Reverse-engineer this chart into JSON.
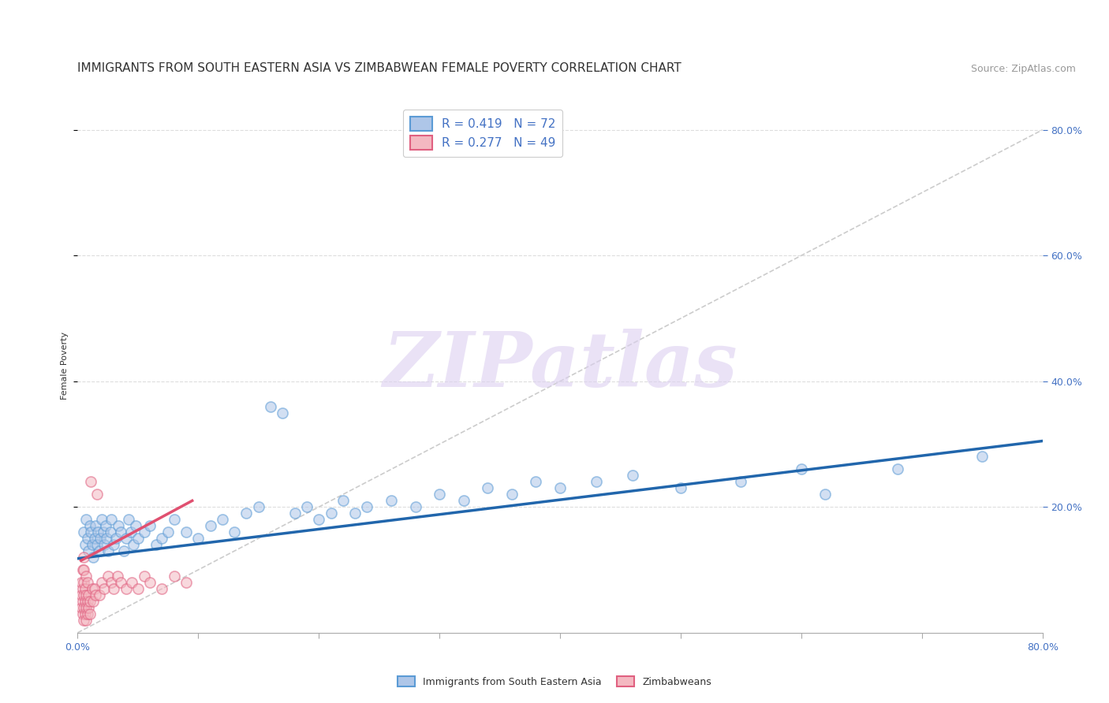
{
  "title": "IMMIGRANTS FROM SOUTH EASTERN ASIA VS ZIMBABWEAN FEMALE POVERTY CORRELATION CHART",
  "source": "Source: ZipAtlas.com",
  "ylabel": "Female Poverty",
  "legend1_R": "0.419",
  "legend1_N": "72",
  "legend2_R": "0.277",
  "legend2_N": "49",
  "blue_fill": "#aec6e8",
  "blue_edge": "#5b9bd5",
  "pink_fill": "#f4b8c1",
  "pink_edge": "#e06080",
  "gray_dash_color": "#cccccc",
  "blue_line_color": "#2166ac",
  "pink_line_color": "#e05070",
  "text_color": "#333333",
  "blue_label_color": "#4472c4",
  "right_axis_color": "#4472c4",
  "grid_color": "#dddddd",
  "background_color": "#ffffff",
  "blue_scatter_x": [
    0.005,
    0.006,
    0.007,
    0.008,
    0.009,
    0.01,
    0.011,
    0.012,
    0.013,
    0.014,
    0.015,
    0.016,
    0.017,
    0.018,
    0.019,
    0.02,
    0.021,
    0.022,
    0.023,
    0.024,
    0.025,
    0.027,
    0.028,
    0.03,
    0.032,
    0.034,
    0.036,
    0.038,
    0.04,
    0.042,
    0.044,
    0.046,
    0.048,
    0.05,
    0.055,
    0.06,
    0.065,
    0.07,
    0.075,
    0.08,
    0.09,
    0.1,
    0.11,
    0.12,
    0.13,
    0.14,
    0.15,
    0.16,
    0.17,
    0.18,
    0.19,
    0.2,
    0.21,
    0.22,
    0.23,
    0.24,
    0.26,
    0.28,
    0.3,
    0.32,
    0.34,
    0.36,
    0.38,
    0.4,
    0.43,
    0.46,
    0.5,
    0.55,
    0.6,
    0.62,
    0.68,
    0.75
  ],
  "blue_scatter_y": [
    0.16,
    0.14,
    0.18,
    0.15,
    0.13,
    0.17,
    0.16,
    0.14,
    0.12,
    0.15,
    0.17,
    0.14,
    0.16,
    0.13,
    0.15,
    0.18,
    0.16,
    0.14,
    0.17,
    0.15,
    0.13,
    0.16,
    0.18,
    0.14,
    0.15,
    0.17,
    0.16,
    0.13,
    0.15,
    0.18,
    0.16,
    0.14,
    0.17,
    0.15,
    0.16,
    0.17,
    0.14,
    0.15,
    0.16,
    0.18,
    0.16,
    0.15,
    0.17,
    0.18,
    0.16,
    0.19,
    0.2,
    0.36,
    0.35,
    0.19,
    0.2,
    0.18,
    0.19,
    0.21,
    0.19,
    0.2,
    0.21,
    0.2,
    0.22,
    0.21,
    0.23,
    0.22,
    0.24,
    0.23,
    0.24,
    0.25,
    0.23,
    0.24,
    0.26,
    0.22,
    0.26,
    0.28
  ],
  "pink_scatter_x": [
    0.003,
    0.003,
    0.003,
    0.004,
    0.004,
    0.004,
    0.004,
    0.005,
    0.005,
    0.005,
    0.005,
    0.005,
    0.005,
    0.006,
    0.006,
    0.006,
    0.007,
    0.007,
    0.007,
    0.007,
    0.008,
    0.008,
    0.008,
    0.009,
    0.009,
    0.01,
    0.01,
    0.011,
    0.012,
    0.013,
    0.014,
    0.015,
    0.016,
    0.018,
    0.02,
    0.022,
    0.025,
    0.028,
    0.03,
    0.033,
    0.036,
    0.04,
    0.045,
    0.05,
    0.055,
    0.06,
    0.07,
    0.08,
    0.09
  ],
  "pink_scatter_y": [
    0.04,
    0.06,
    0.08,
    0.03,
    0.05,
    0.07,
    0.1,
    0.02,
    0.04,
    0.06,
    0.08,
    0.1,
    0.12,
    0.03,
    0.05,
    0.07,
    0.02,
    0.04,
    0.06,
    0.09,
    0.03,
    0.05,
    0.08,
    0.04,
    0.06,
    0.03,
    0.05,
    0.24,
    0.07,
    0.05,
    0.07,
    0.06,
    0.22,
    0.06,
    0.08,
    0.07,
    0.09,
    0.08,
    0.07,
    0.09,
    0.08,
    0.07,
    0.08,
    0.07,
    0.09,
    0.08,
    0.07,
    0.09,
    0.08
  ],
  "blue_line_x": [
    0.0,
    0.8
  ],
  "blue_line_y": [
    0.118,
    0.305
  ],
  "pink_line_x": [
    0.003,
    0.095
  ],
  "pink_line_y": [
    0.115,
    0.21
  ],
  "gray_line_x": [
    0.0,
    0.8
  ],
  "gray_line_y": [
    0.0,
    0.8
  ],
  "xlim": [
    0.0,
    0.8
  ],
  "ylim": [
    0.0,
    0.85
  ],
  "yticks": [
    0.2,
    0.4,
    0.6,
    0.8
  ],
  "ytick_labels": [
    "20.0%",
    "40.0%",
    "60.0%",
    "80.0%"
  ],
  "title_fontsize": 11,
  "source_fontsize": 9,
  "label_fontsize": 8,
  "tick_fontsize": 9,
  "legend_fontsize": 11,
  "scatter_size": 90,
  "scatter_alpha": 0.55,
  "scatter_linewidth": 1.2,
  "watermark_text": "ZIPatlas",
  "watermark_color": "#dcd0f0",
  "watermark_alpha": 0.6,
  "legend_label1": "Immigrants from South Eastern Asia",
  "legend_label2": "Zimbabweans"
}
